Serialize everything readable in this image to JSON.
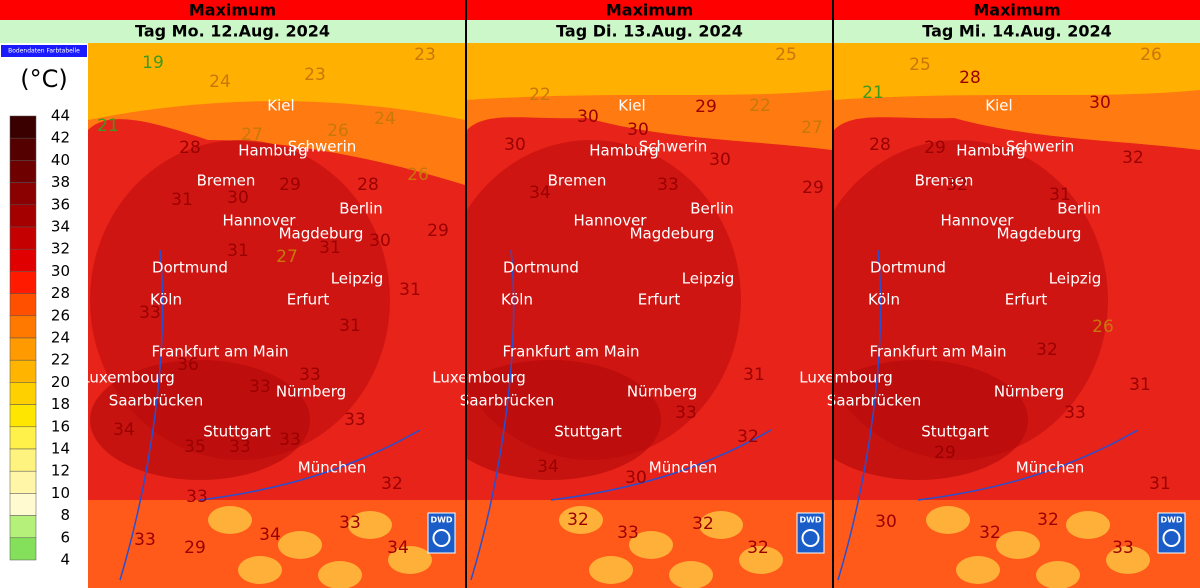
{
  "panels": [
    {
      "title": "Maximum",
      "date": "Tag Mo. 12.Aug. 2024",
      "logo": "DWD",
      "temps": [
        19,
        24,
        23,
        23,
        21,
        27,
        26,
        24,
        28,
        29,
        28,
        26,
        31,
        30,
        29,
        30,
        31,
        27,
        31,
        31,
        31,
        33,
        36,
        33,
        33,
        34,
        33,
        35,
        33,
        33,
        32,
        33,
        34,
        33,
        33,
        29,
        34
      ]
    },
    {
      "title": "Maximum",
      "date": "Tag Di. 13.Aug. 2024",
      "logo": "DWD",
      "temps": [
        25,
        22,
        30,
        30,
        29,
        22,
        27,
        30,
        30,
        29,
        33,
        34,
        31,
        33,
        32,
        34,
        30,
        32,
        33,
        32,
        32
      ]
    },
    {
      "title": "Maximum",
      "date": "Tag Mi. 14.Aug. 2024",
      "logo": "DWD",
      "temps": [
        25,
        28,
        26,
        21,
        30,
        29,
        28,
        32,
        32,
        31,
        26,
        31,
        32,
        33,
        29,
        30,
        32,
        32,
        31,
        33
      ]
    }
  ],
  "cities": [
    "Kiel",
    "Hamburg",
    "Schwerin",
    "Bremen",
    "Hannover",
    "Berlin",
    "Magdeburg",
    "Dortmund",
    "Leipzig",
    "Köln",
    "Erfurt",
    "Frankfurt am Main",
    "Luxembourg",
    "Saarbrücken",
    "Nürnberg",
    "Stuttgart",
    "München"
  ],
  "legend": {
    "caption": "Bodendaten Farbtabelle",
    "unit": "(°C)",
    "ticks": [
      44,
      42,
      40,
      38,
      36,
      34,
      32,
      30,
      28,
      26,
      24,
      22,
      20,
      18,
      16,
      14,
      12,
      10,
      8,
      6,
      4
    ]
  }
}
